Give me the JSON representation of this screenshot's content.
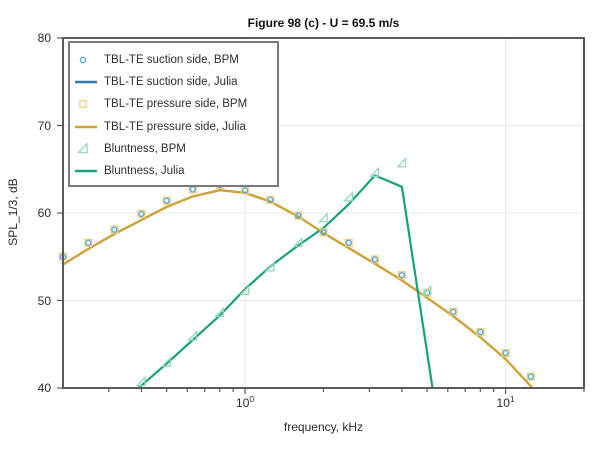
{
  "background": "#FFFFFF",
  "colors": {
    "frame": "#5a5a5a",
    "grid": "#e9e9e9",
    "tick_text": "#2b2b2b"
  },
  "legend": {
    "items": [
      {
        "label": "TBL-TE suction side, BPM",
        "glyph": "circle-marker"
      },
      {
        "label": "TBL-TE suction side, Julia",
        "glyph": "line"
      },
      {
        "label": "TBL-TE pressure side, BPM",
        "glyph": "square-marker"
      },
      {
        "label": "TBL-TE pressure side, Julia",
        "glyph": "line"
      },
      {
        "label": "Bluntness, BPM",
        "glyph": "triangle-marker"
      },
      {
        "label": "Bluntness, Julia",
        "glyph": "line"
      }
    ]
  },
  "chart_data": {
    "type": "line",
    "title": "Figure 98 (c) - U = 69.5 m/s",
    "xlabel": "frequency, kHz",
    "ylabel": "SPL_1/3, dB",
    "xscale": "log",
    "xlim": [
      0.2,
      20
    ],
    "ylim": [
      40,
      80
    ],
    "yticks": [
      40,
      50,
      60,
      70,
      80
    ],
    "xticks_major": [
      {
        "value": 1,
        "base": "10",
        "exp": "0"
      },
      {
        "value": 10,
        "base": "10",
        "exp": "1"
      }
    ],
    "xticks_minor": [
      0.3,
      0.4,
      0.5,
      0.6,
      0.7,
      0.8,
      0.9,
      2,
      3,
      4,
      5,
      6,
      7,
      8,
      9,
      20
    ],
    "grid": true,
    "legend_position": "upper left",
    "series": [
      {
        "name": "TBL-TE suction side, BPM",
        "type": "scatter",
        "marker": "circle",
        "color": "#4FA6CE",
        "x": [
          0.2,
          0.25,
          0.315,
          0.4,
          0.5,
          0.63,
          0.8,
          1.0,
          1.25,
          1.6,
          2.0,
          2.5,
          3.15,
          4.0,
          5.0,
          6.3,
          8.0,
          10.0,
          12.5
        ],
        "y": [
          55.0,
          56.6,
          58.1,
          59.9,
          61.4,
          62.7,
          63.2,
          62.6,
          61.5,
          59.7,
          57.8,
          56.6,
          54.7,
          52.9,
          50.9,
          48.7,
          46.4,
          44.0,
          41.3
        ]
      },
      {
        "name": "TBL-TE suction side, Julia",
        "type": "line",
        "color": "#3379AE",
        "x": [
          0.2,
          0.25,
          0.315,
          0.4,
          0.5,
          0.63,
          0.8,
          1.0,
          1.25,
          1.6,
          2.0,
          2.5,
          3.15,
          4.0,
          5.0,
          6.3,
          8.0,
          10.0,
          12.5,
          12.7
        ],
        "y": [
          54.1,
          55.9,
          57.6,
          59.2,
          60.7,
          61.9,
          62.6,
          62.3,
          61.3,
          59.6,
          57.7,
          56.0,
          54.2,
          52.3,
          50.3,
          48.2,
          45.8,
          43.3,
          40.2,
          40.0
        ]
      },
      {
        "name": "TBL-TE pressure side, BPM",
        "type": "scatter",
        "marker": "square",
        "color": "#F3CC82",
        "x": [
          0.2,
          0.25,
          0.315,
          0.4,
          0.5,
          0.63,
          0.8,
          1.0,
          1.25,
          1.6,
          2.0,
          2.5,
          3.15,
          4.0,
          5.0,
          6.3,
          8.0,
          10.0,
          12.5
        ],
        "y": [
          55.0,
          56.6,
          58.1,
          59.9,
          61.4,
          62.7,
          63.2,
          62.6,
          61.5,
          59.7,
          57.8,
          56.6,
          54.7,
          52.9,
          50.9,
          48.7,
          46.4,
          44.0,
          41.3
        ]
      },
      {
        "name": "TBL-TE pressure side, Julia",
        "type": "line",
        "color": "#D6A42A",
        "x": [
          0.2,
          0.25,
          0.315,
          0.4,
          0.5,
          0.63,
          0.8,
          1.0,
          1.25,
          1.6,
          2.0,
          2.5,
          3.15,
          4.0,
          5.0,
          6.3,
          8.0,
          10.0,
          12.5,
          12.7
        ],
        "y": [
          54.1,
          55.9,
          57.6,
          59.2,
          60.7,
          61.9,
          62.6,
          62.3,
          61.3,
          59.6,
          57.7,
          56.0,
          54.2,
          52.3,
          50.3,
          48.2,
          45.8,
          43.3,
          40.2,
          40.0
        ]
      },
      {
        "name": "Bluntness, BPM",
        "type": "scatter",
        "marker": "triangle",
        "color": "#90D9B5",
        "x": [
          0.4,
          0.5,
          0.63,
          0.8,
          1.0,
          1.25,
          1.6,
          2.0,
          2.5,
          3.15,
          4.0,
          5.0
        ],
        "y": [
          40.7,
          42.9,
          45.9,
          48.6,
          51.1,
          53.8,
          56.6,
          59.4,
          61.8,
          64.6,
          65.7,
          51.1
        ]
      },
      {
        "name": "Bluntness, Julia",
        "type": "line",
        "color": "#17A17C",
        "x": [
          0.39,
          0.5,
          0.63,
          0.8,
          1.0,
          1.25,
          1.6,
          2.0,
          2.5,
          3.15,
          4.0,
          5.24
        ],
        "y": [
          40.0,
          42.8,
          45.5,
          48.3,
          51.3,
          53.9,
          56.3,
          58.3,
          61.0,
          64.3,
          63.0,
          40.0
        ]
      }
    ]
  }
}
